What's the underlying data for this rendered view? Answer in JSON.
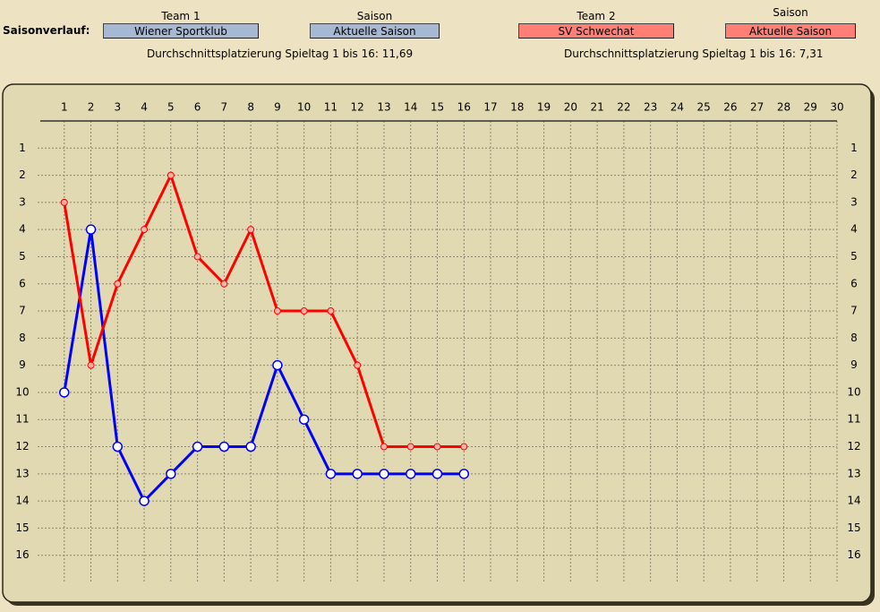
{
  "header": {
    "label": "Saisonverlauf:",
    "team1": {
      "caption": "Team 1",
      "name": "Wiener Sportklub",
      "season_caption": "Saison",
      "season": "Aktuelle Saison",
      "average": "Durchschnittsplatzierung Spieltag 1 bis 16: 11,69"
    },
    "team2": {
      "caption": "Team 2",
      "name": "SV Schwechat",
      "season_caption": "Saison",
      "season": "Aktuelle Saison",
      "average": "Durchschnittsplatzierung Spieltag 1 bis 16:  7,31"
    }
  },
  "chart_data": {
    "type": "line",
    "x": [
      1,
      2,
      3,
      4,
      5,
      6,
      7,
      8,
      9,
      10,
      11,
      12,
      13,
      14,
      15,
      16
    ],
    "series": [
      {
        "color": "#0000ff",
        "values": [
          10,
          4,
          12,
          14,
          13,
          12,
          12,
          12,
          9,
          11,
          13,
          13,
          13,
          13,
          13,
          13
        ]
      },
      {
        "color": "#ff0000",
        "values": [
          3,
          9,
          6,
          4,
          2,
          5,
          6,
          4,
          7,
          7,
          7,
          9,
          12,
          12,
          12,
          12
        ]
      }
    ],
    "xlim": [
      0,
      30
    ],
    "xticks": [
      1,
      2,
      3,
      4,
      5,
      6,
      7,
      8,
      9,
      10,
      11,
      12,
      13,
      14,
      15,
      16,
      17,
      18,
      19,
      20,
      21,
      22,
      23,
      24,
      25,
      26,
      27,
      28,
      29,
      30
    ],
    "ylim": [
      17,
      0
    ],
    "yticks": [
      1,
      2,
      3,
      4,
      5,
      6,
      7,
      8,
      9,
      10,
      11,
      12,
      13,
      14,
      15,
      16
    ],
    "grid": true
  }
}
